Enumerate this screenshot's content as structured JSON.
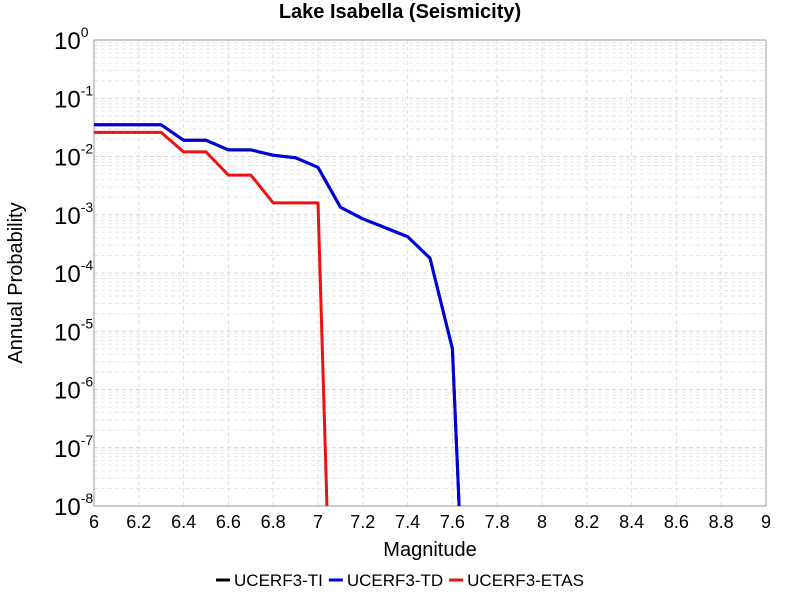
{
  "chart_data": {
    "type": "line",
    "title": "Lake Isabella (Seismicity)",
    "xlabel": "Magnitude",
    "ylabel": "Annual Probability",
    "xlim": [
      6,
      9
    ],
    "ylim": [
      1e-08,
      1
    ],
    "yscale": "log",
    "grid": true,
    "legend_position": "bottom",
    "x_ticks": [
      "6",
      "6.2",
      "6.4",
      "6.6",
      "6.8",
      "7",
      "7.2",
      "7.4",
      "7.6",
      "7.8",
      "8",
      "8.2",
      "8.4",
      "8.6",
      "8.8",
      "9"
    ],
    "y_ticks": [
      {
        "base": "10",
        "exp": "0"
      },
      {
        "base": "10",
        "exp": "-1"
      },
      {
        "base": "10",
        "exp": "-2"
      },
      {
        "base": "10",
        "exp": "-3"
      },
      {
        "base": "10",
        "exp": "-4"
      },
      {
        "base": "10",
        "exp": "-5"
      },
      {
        "base": "10",
        "exp": "-6"
      },
      {
        "base": "10",
        "exp": "-7"
      },
      {
        "base": "10",
        "exp": "-8"
      }
    ],
    "series": [
      {
        "name": "UCERF3-TI",
        "color": "#000000",
        "x": [
          6.0,
          6.1,
          6.2,
          6.3,
          6.4,
          6.5,
          6.6,
          6.7,
          6.8,
          6.9,
          7.0,
          7.1,
          7.2,
          7.3,
          7.4,
          7.5,
          7.6,
          7.63
        ],
        "y": [
          0.035,
          0.035,
          0.035,
          0.035,
          0.019,
          0.019,
          0.013,
          0.013,
          0.0105,
          0.0095,
          0.0065,
          0.00135,
          0.00085,
          0.0006,
          0.00042,
          0.00018,
          5e-06,
          1e-08
        ]
      },
      {
        "name": "UCERF3-TD",
        "color": "#0000dd",
        "x": [
          6.0,
          6.1,
          6.2,
          6.3,
          6.4,
          6.5,
          6.6,
          6.7,
          6.8,
          6.9,
          7.0,
          7.1,
          7.2,
          7.3,
          7.4,
          7.5,
          7.6,
          7.63
        ],
        "y": [
          0.035,
          0.035,
          0.035,
          0.035,
          0.019,
          0.019,
          0.013,
          0.013,
          0.0105,
          0.0095,
          0.0065,
          0.00135,
          0.00085,
          0.0006,
          0.00042,
          0.00018,
          5e-06,
          1e-08
        ]
      },
      {
        "name": "UCERF3-ETAS",
        "color": "#ee1111",
        "x": [
          6.0,
          6.1,
          6.2,
          6.3,
          6.4,
          6.5,
          6.6,
          6.7,
          6.8,
          6.9,
          7.0,
          7.04
        ],
        "y": [
          0.026,
          0.026,
          0.026,
          0.026,
          0.012,
          0.012,
          0.0048,
          0.0048,
          0.0016,
          0.0016,
          0.0016,
          1e-08
        ]
      }
    ]
  }
}
